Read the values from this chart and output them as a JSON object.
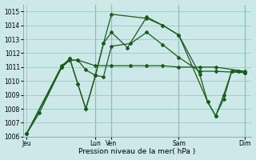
{
  "title": "",
  "xlabel": "Pression niveau de la mer( hPa )",
  "ylabel": "",
  "background_color": "#cce8e8",
  "grid_color": "#99ccbb",
  "line_color": "#1a5c1a",
  "ylim": [
    1006,
    1015.5
  ],
  "yticks": [
    1006,
    1007,
    1008,
    1009,
    1010,
    1011,
    1012,
    1013,
    1014,
    1015
  ],
  "day_labels": [
    "Jeu",
    "",
    "Lun",
    "Ven",
    "",
    "Sam",
    "",
    "Dim"
  ],
  "xlim": [
    -2,
    140
  ],
  "series": [
    {
      "x": [
        0,
        8,
        22,
        27,
        32,
        43,
        53,
        65,
        75,
        85,
        95,
        108,
        118,
        136
      ],
      "y": [
        1006.2,
        1007.7,
        1011.0,
        1011.5,
        1011.5,
        1011.1,
        1011.1,
        1011.1,
        1011.1,
        1011.1,
        1011.0,
        1011.0,
        1011.0,
        1010.7
      ]
    },
    {
      "x": [
        0,
        22,
        27,
        32,
        37,
        43,
        48,
        53,
        65,
        75,
        85,
        95,
        108,
        118,
        136
      ],
      "y": [
        1006.2,
        1011.0,
        1011.5,
        1011.5,
        1010.8,
        1010.4,
        1010.3,
        1012.5,
        1012.7,
        1013.5,
        1012.6,
        1011.7,
        1010.7,
        1010.7,
        1010.6
      ]
    },
    {
      "x": [
        0,
        22,
        27,
        32,
        37,
        43,
        48,
        53,
        63,
        75,
        85,
        95,
        108,
        113,
        118,
        123,
        128,
        132,
        136
      ],
      "y": [
        1006.2,
        1011.1,
        1011.6,
        1009.8,
        1008.0,
        1010.4,
        1012.7,
        1013.5,
        1012.4,
        1014.6,
        1014.0,
        1013.3,
        1010.5,
        1008.5,
        1007.5,
        1008.7,
        1010.7,
        1010.7,
        1010.6
      ]
    },
    {
      "x": [
        0,
        22,
        27,
        32,
        37,
        43,
        48,
        53,
        75,
        85,
        95,
        113,
        118,
        123,
        128,
        132,
        136
      ],
      "y": [
        1006.2,
        1011.0,
        1011.6,
        1009.8,
        1008.0,
        1010.4,
        1012.7,
        1014.8,
        1014.5,
        1014.0,
        1013.3,
        1008.5,
        1007.5,
        1009.0,
        1010.7,
        1010.7,
        1010.6
      ]
    }
  ],
  "vline_positions": [
    43,
    53,
    95,
    136
  ],
  "tick_label_positions": [
    0,
    43,
    53,
    95,
    136
  ]
}
